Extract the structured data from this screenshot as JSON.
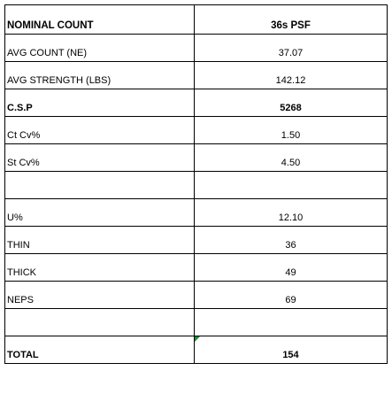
{
  "table": {
    "rows": [
      {
        "label": "NOMINAL COUNT",
        "value": "36s PSF"
      },
      {
        "label": "AVG COUNT (NE)",
        "value": "37.07"
      },
      {
        "label": "AVG STRENGTH (LBS)",
        "value": "142.12"
      },
      {
        "label": "C.S.P",
        "value": "5268"
      },
      {
        "label": "Ct Cv%",
        "value": "1.50"
      },
      {
        "label": "St Cv%",
        "value": "4.50"
      },
      {
        "label": "",
        "value": ""
      },
      {
        "label": "U%",
        "value": "12.10"
      },
      {
        "label": "THIN",
        "value": "36"
      },
      {
        "label": "THICK",
        "value": "49"
      },
      {
        "label": "NEPS",
        "value": "69"
      },
      {
        "label": "",
        "value": ""
      },
      {
        "label": "TOTAL",
        "value": "154"
      }
    ]
  },
  "colors": {
    "cell_marker": "#1a8a3a"
  }
}
